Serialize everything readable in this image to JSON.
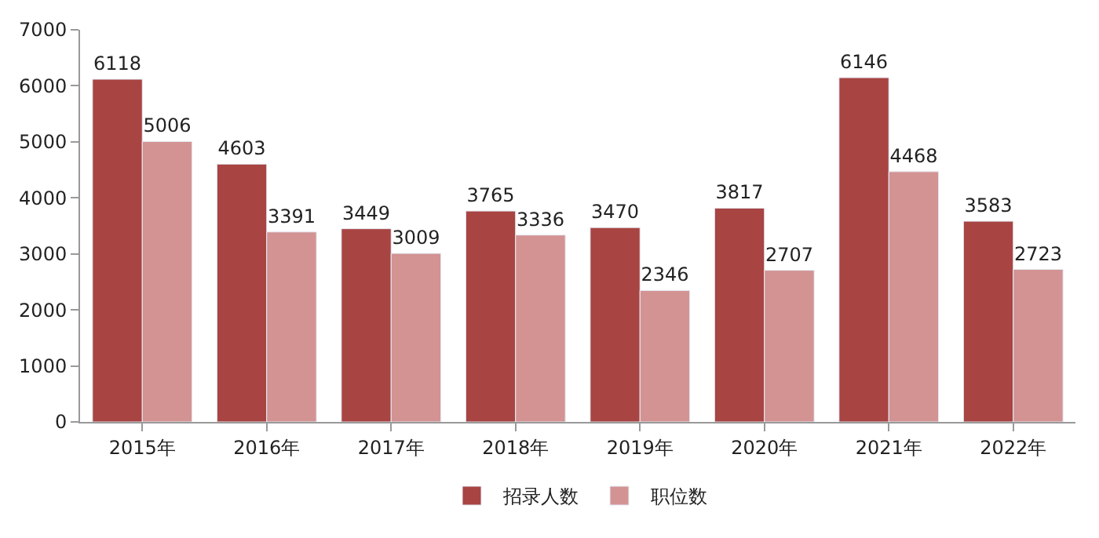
{
  "chart_data": {
    "type": "bar",
    "categories": [
      "2015年",
      "2016年",
      "2017年",
      "2018年",
      "2019年",
      "2020年",
      "2021年",
      "2022年"
    ],
    "series": [
      {
        "name": "招录人数",
        "color": "#a84442",
        "values": [
          6118,
          4603,
          3449,
          3765,
          3470,
          3817,
          6146,
          3583
        ]
      },
      {
        "name": "职位数",
        "color": "#d39393",
        "values": [
          5006,
          3391,
          3009,
          3336,
          2346,
          2707,
          4468,
          2723
        ]
      }
    ],
    "ylim": [
      0,
      7000
    ],
    "yticks": [
      0,
      1000,
      2000,
      3000,
      4000,
      5000,
      6000,
      7000
    ],
    "legend": "bottom",
    "data_labels": true
  }
}
